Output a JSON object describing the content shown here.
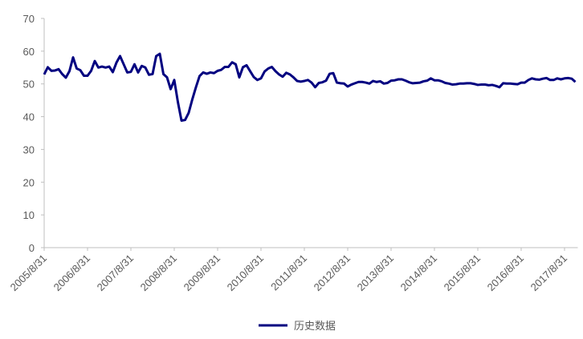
{
  "chart_data": {
    "type": "line",
    "x": [
      "2005/8/31",
      null,
      null,
      null,
      null,
      null,
      null,
      null,
      null,
      null,
      null,
      null,
      "2006/8/31",
      null,
      null,
      null,
      null,
      null,
      null,
      null,
      null,
      null,
      null,
      null,
      "2007/8/31",
      null,
      null,
      null,
      null,
      null,
      null,
      null,
      null,
      null,
      null,
      null,
      "2008/8/31",
      null,
      null,
      null,
      null,
      null,
      null,
      null,
      null,
      null,
      null,
      null,
      "2009/8/31",
      null,
      null,
      null,
      null,
      null,
      null,
      null,
      null,
      null,
      null,
      null,
      "2010/8/31",
      null,
      null,
      null,
      null,
      null,
      null,
      null,
      null,
      null,
      null,
      null,
      "2011/8/31",
      null,
      null,
      null,
      null,
      null,
      null,
      null,
      null,
      null,
      null,
      null,
      "2012/8/31",
      null,
      null,
      null,
      null,
      null,
      null,
      null,
      null,
      null,
      null,
      null,
      "2013/8/31",
      null,
      null,
      null,
      null,
      null,
      null,
      null,
      null,
      null,
      null,
      null,
      "2014/8/31",
      null,
      null,
      null,
      null,
      null,
      null,
      null,
      null,
      null,
      null,
      null,
      "2015/8/31",
      null,
      null,
      null,
      null,
      null,
      null,
      null,
      null,
      null,
      null,
      null,
      "2016/8/31",
      null,
      null,
      null,
      null,
      null,
      null,
      null,
      null,
      null,
      null,
      null,
      "2017/8/31",
      null,
      null,
      null
    ],
    "series": [
      {
        "name": "历史数据",
        "color": "#000080",
        "values": [
          52.9,
          55.1,
          54.0,
          54.1,
          54.5,
          53.0,
          51.9,
          53.9,
          58.1,
          54.7,
          54.2,
          52.5,
          52.5,
          54.0,
          57.0,
          55.0,
          55.3,
          55.0,
          55.3,
          53.6,
          56.5,
          58.5,
          56.0,
          53.5,
          53.7,
          56.0,
          53.5,
          55.5,
          55.0,
          52.8,
          53.0,
          58.5,
          59.2,
          53.0,
          52.0,
          48.4,
          51.2,
          44.5,
          38.8,
          39.0,
          41.2,
          45.3,
          49.0,
          52.4,
          53.5,
          53.1,
          53.5,
          53.3,
          54.0,
          54.3,
          55.2,
          55.2,
          56.6,
          56.0,
          52.0,
          55.1,
          55.7,
          53.9,
          52.1,
          51.2,
          51.7,
          53.8,
          54.7,
          55.2,
          53.9,
          52.9,
          52.2,
          53.4,
          52.9,
          52.0,
          50.9,
          50.7,
          50.9,
          51.2,
          50.4,
          49.0,
          50.3,
          50.5,
          51.0,
          53.1,
          53.3,
          50.4,
          50.2,
          50.1,
          49.2,
          49.8,
          50.2,
          50.6,
          50.6,
          50.4,
          50.1,
          50.9,
          50.6,
          50.8,
          50.1,
          50.3,
          51.0,
          51.1,
          51.4,
          51.4,
          51.0,
          50.5,
          50.2,
          50.3,
          50.4,
          50.8,
          51.0,
          51.7,
          51.1,
          51.1,
          50.8,
          50.3,
          50.1,
          49.8,
          49.9,
          50.1,
          50.1,
          50.2,
          50.2,
          50.0,
          49.7,
          49.8,
          49.8,
          49.6,
          49.7,
          49.4,
          49.0,
          50.2,
          50.1,
          50.1,
          50.0,
          49.9,
          50.4,
          50.4,
          51.2,
          51.7,
          51.4,
          51.3,
          51.6,
          51.8,
          51.2,
          51.2,
          51.7,
          51.4,
          51.7,
          51.8,
          51.6,
          50.6
        ]
      }
    ],
    "ylim": [
      0,
      70
    ],
    "yticks": [
      0,
      10,
      20,
      30,
      40,
      50,
      60,
      70
    ],
    "grid": false,
    "legend": "bottom"
  }
}
